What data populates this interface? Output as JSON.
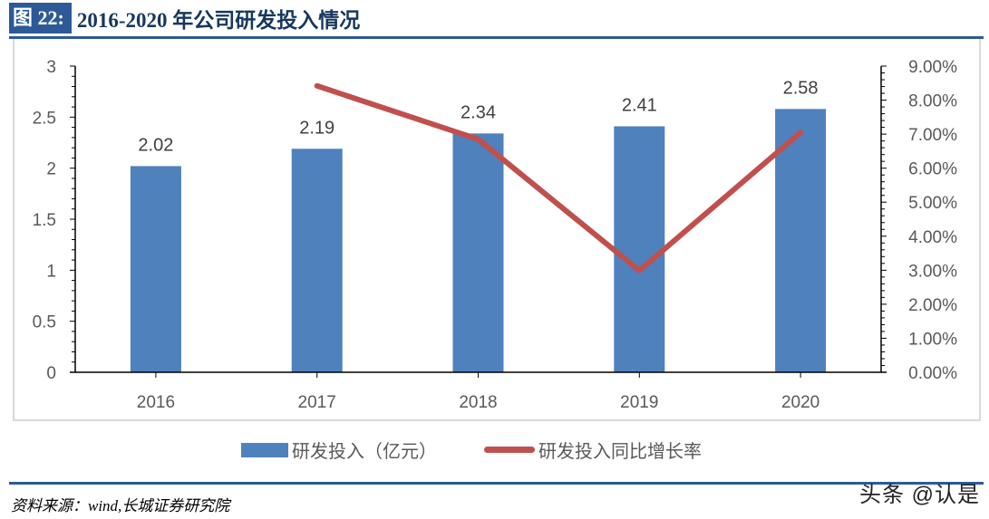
{
  "header": {
    "figure_label": "图 22:",
    "title": "2016-2020 年公司研发投入情况"
  },
  "chart_data": {
    "type": "bar+line",
    "title": "2016-2020 年公司研发投入情况",
    "categories": [
      "2016",
      "2017",
      "2018",
      "2019",
      "2020"
    ],
    "series": [
      {
        "name": "研发投入（亿元）",
        "type": "bar",
        "axis": "left",
        "color": "#4f81bd",
        "values": [
          2.02,
          2.19,
          2.34,
          2.41,
          2.58
        ],
        "labels": [
          "2.02",
          "2.19",
          "2.34",
          "2.41",
          "2.58"
        ]
      },
      {
        "name": "研发投入同比增长率",
        "type": "line",
        "axis": "right",
        "color": "#c0504d",
        "values": [
          null,
          8.42,
          6.85,
          2.99,
          7.05
        ]
      }
    ],
    "y_left": {
      "ylim": [
        0,
        3
      ],
      "ticks": [
        "0",
        "0.5",
        "1",
        "1.5",
        "2",
        "2.5",
        "3"
      ]
    },
    "y_right": {
      "ylim": [
        0,
        9
      ],
      "ticks": [
        "0.00%",
        "1.00%",
        "2.00%",
        "3.00%",
        "4.00%",
        "5.00%",
        "6.00%",
        "7.00%",
        "8.00%",
        "9.00%"
      ]
    },
    "xlabel": "",
    "ylabel": "",
    "grid": false,
    "legend_position": "bottom"
  },
  "legend": {
    "bar_label": "研发投入（亿元）",
    "line_label": "研发投入同比增长率"
  },
  "footer": {
    "source": "资料来源：wind,长城证券研究院",
    "watermark": "头条 @认是"
  }
}
